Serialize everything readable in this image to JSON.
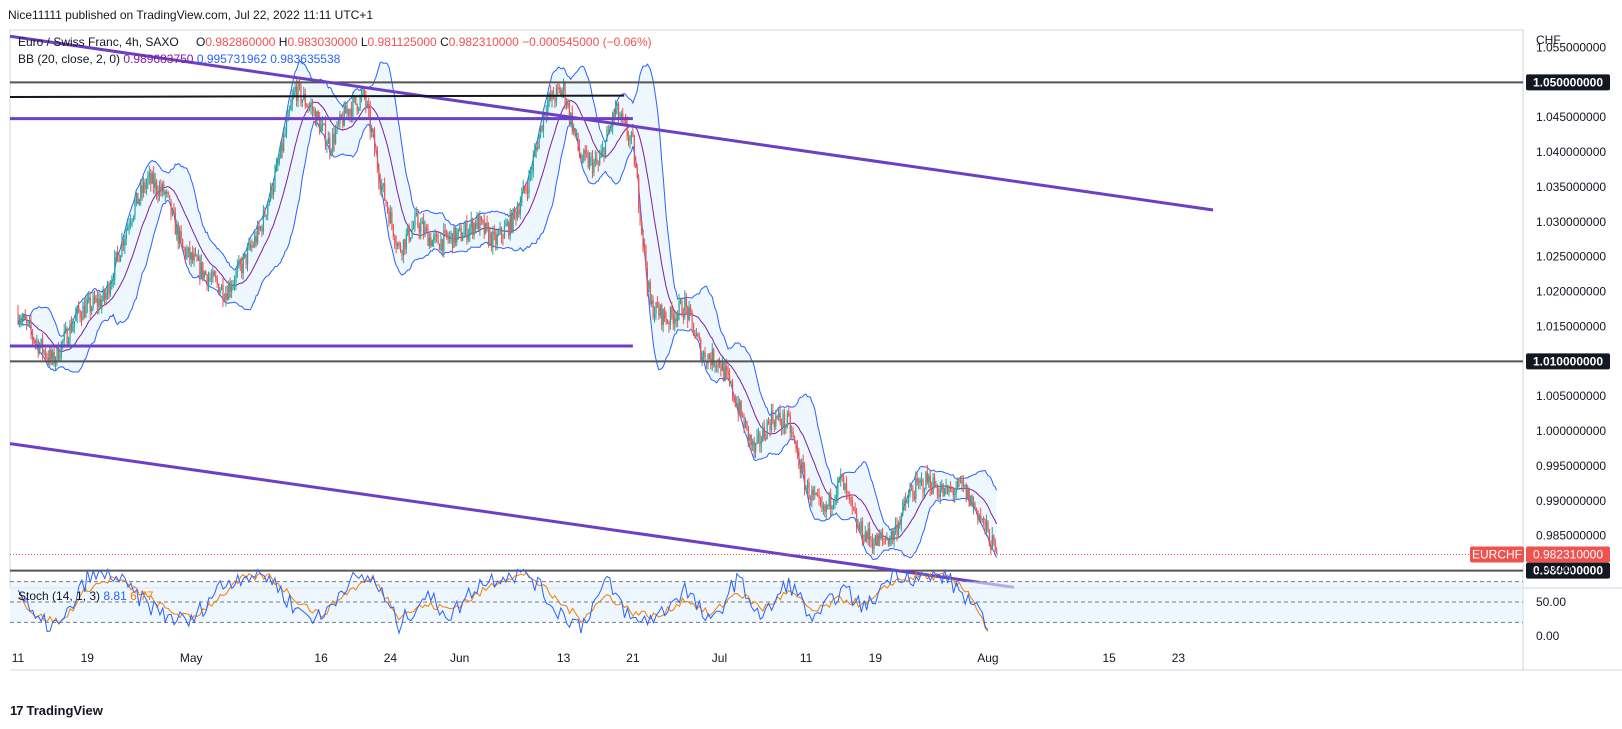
{
  "header": {
    "publisher": "Nice11111 published on TradingView.com, Jul 22, 2022 11:11 UTC+1"
  },
  "legend": {
    "symbol": "Euro / Swiss Franc, 4h, SAXO",
    "o_label": "O",
    "o": "0.982860000",
    "h_label": "H",
    "h": "0.983030000",
    "l_label": "L",
    "l": "0.981125000",
    "c_label": "C",
    "c": "0.982310000",
    "change": "−0.000545000 (−0.06%)",
    "bb_label": "BB (20, close, 2, 0)",
    "bb_mid": "0.989683750",
    "bb_upper": "0.995731962",
    "bb_lower": "0.983635538",
    "stoch_label": "Stoch (14, 1, 3)",
    "stoch_k": "8.81",
    "stoch_d": "6.77"
  },
  "footer": {
    "brand": "TradingView",
    "logo": "17"
  },
  "colors": {
    "up": "#26a69a",
    "down": "#ef5350",
    "bb_band": "#2962ff",
    "bb_fill": "#e3f2fd",
    "bb_basis": "#7b1fa2",
    "trendline": "#6c3fc5",
    "level": "#131722",
    "stoch_k": "#2962ff",
    "stoch_d": "#f57c00",
    "price_tag": "#ef5350"
  },
  "chart_data": {
    "type": "candlestick",
    "title": "Euro / Swiss Franc, 4h, SAXO",
    "currency": "CHF",
    "price_axis": {
      "ylim": [
        0.9775,
        1.0575
      ],
      "ticks": [
        1.055,
        1.045,
        1.04,
        1.035,
        1.03,
        1.025,
        1.02,
        1.015,
        1.005,
        1.0,
        0.995,
        0.99,
        0.985
      ],
      "tick_labels": [
        "1.055000000",
        "1.045000000",
        "1.040000000",
        "1.035000000",
        "1.030000000",
        "1.025000000",
        "1.020000000",
        "1.015000000",
        "1.005000000",
        "1.000000000",
        "0.995000000",
        "0.990000000",
        "0.985000000"
      ]
    },
    "x_axis": {
      "tick_labels": [
        "11",
        "19",
        "May",
        "16",
        "24",
        "Jun",
        "13",
        "21",
        "Jul",
        "11",
        "19",
        "Aug",
        "15",
        "23"
      ],
      "tick_dates": [
        "2022-04-11",
        "2022-04-19",
        "2022-05-01",
        "2022-05-16",
        "2022-05-24",
        "2022-06-01",
        "2022-06-13",
        "2022-06-21",
        "2022-07-01",
        "2022-07-11",
        "2022-07-19",
        "2022-08-01",
        "2022-08-15",
        "2022-08-23"
      ]
    },
    "horizontal_levels": [
      {
        "name": "resistance",
        "price": 1.05,
        "label": "1.050000000"
      },
      {
        "name": "support-mid",
        "price": 1.01,
        "label": "1.010000000"
      },
      {
        "name": "support-low",
        "price": 0.98,
        "label": "0.980000000"
      }
    ],
    "last_price": {
      "symbol": "EURCHF",
      "price": 0.98231,
      "label": "0.982310000"
    },
    "trend_lines": [
      {
        "name": "upper-descending-trendline",
        "from": [
          "2022-04-11",
          1.0566
        ],
        "to": [
          "2022-08-27",
          1.0317
        ]
      },
      {
        "name": "lower-descending-trendline",
        "from": [
          "2022-04-11",
          0.9982
        ],
        "to": [
          "2022-08-04",
          0.9776
        ]
      },
      {
        "name": "upper-horizontal-band",
        "from": [
          "2022-04-11",
          1.0448
        ],
        "to": [
          "2022-06-21",
          1.0448
        ]
      },
      {
        "name": "middle-horizontal-band",
        "from": [
          "2022-04-11",
          1.0122
        ],
        "to": [
          "2022-06-21",
          1.0122
        ]
      },
      {
        "name": "black-top-line",
        "from": [
          "2022-04-11",
          1.0479
        ],
        "to": [
          "2022-06-20",
          1.0481
        ]
      }
    ],
    "price_path": [
      [
        "2022-04-11",
        1.017
      ],
      [
        "2022-04-13",
        1.013
      ],
      [
        "2022-04-15",
        1.01
      ],
      [
        "2022-04-18",
        1.017
      ],
      [
        "2022-04-21",
        1.019
      ],
      [
        "2022-04-24",
        1.031
      ],
      [
        "2022-04-26",
        1.036
      ],
      [
        "2022-04-28",
        1.034
      ],
      [
        "2022-04-30",
        1.026
      ],
      [
        "2022-05-03",
        1.022
      ],
      [
        "2022-05-05",
        1.02
      ],
      [
        "2022-05-07",
        1.024
      ],
      [
        "2022-05-09",
        1.029
      ],
      [
        "2022-05-11",
        1.038
      ],
      [
        "2022-05-13",
        1.049
      ],
      [
        "2022-05-15",
        1.046
      ],
      [
        "2022-05-17",
        1.041
      ],
      [
        "2022-05-19",
        1.046
      ],
      [
        "2022-05-21",
        1.048
      ],
      [
        "2022-05-23",
        1.035
      ],
      [
        "2022-05-25",
        1.026
      ],
      [
        "2022-05-27",
        1.03
      ],
      [
        "2022-05-29",
        1.027
      ],
      [
        "2022-06-01",
        1.028
      ],
      [
        "2022-06-03",
        1.03
      ],
      [
        "2022-06-05",
        1.027
      ],
      [
        "2022-06-07",
        1.03
      ],
      [
        "2022-06-09",
        1.036
      ],
      [
        "2022-06-11",
        1.047
      ],
      [
        "2022-06-13",
        1.049
      ],
      [
        "2022-06-15",
        1.039
      ],
      [
        "2022-06-17",
        1.038
      ],
      [
        "2022-06-19",
        1.046
      ],
      [
        "2022-06-21",
        1.041
      ],
      [
        "2022-06-23",
        1.018
      ],
      [
        "2022-06-25",
        1.016
      ],
      [
        "2022-06-27",
        1.018
      ],
      [
        "2022-06-29",
        1.011
      ],
      [
        "2022-07-01",
        1.01
      ],
      [
        "2022-07-03",
        1.004
      ],
      [
        "2022-07-05",
        0.997
      ],
      [
        "2022-07-07",
        1.002
      ],
      [
        "2022-07-09",
        1.001
      ],
      [
        "2022-07-11",
        0.992
      ],
      [
        "2022-07-13",
        0.988
      ],
      [
        "2022-07-15",
        0.993
      ],
      [
        "2022-07-17",
        0.986
      ],
      [
        "2022-07-19",
        0.984
      ],
      [
        "2022-07-21",
        0.985
      ],
      [
        "2022-07-23",
        0.991
      ],
      [
        "2022-07-25",
        0.993
      ],
      [
        "2022-07-27",
        0.991
      ],
      [
        "2022-07-29",
        0.992
      ],
      [
        "2022-07-31",
        0.988
      ],
      [
        "2022-08-02",
        0.9823
      ]
    ],
    "bollinger": {
      "period": 20,
      "source": "close",
      "stddev": 2,
      "offset": 0
    },
    "stochastic": {
      "label": "Stoch (14, 1, 3)",
      "ylim": [
        0,
        100
      ],
      "tick_labels": [
        "100.00",
        "50.00",
        "0.00"
      ],
      "bands": [
        20,
        50,
        80
      ],
      "k": [
        [
          "2022-04-11",
          70
        ],
        [
          "2022-04-13",
          20
        ],
        [
          "2022-04-16",
          15
        ],
        [
          "2022-04-19",
          85
        ],
        [
          "2022-04-22",
          90
        ],
        [
          "2022-04-25",
          55
        ],
        [
          "2022-04-28",
          30
        ],
        [
          "2022-05-01",
          20
        ],
        [
          "2022-05-04",
          70
        ],
        [
          "2022-05-07",
          90
        ],
        [
          "2022-05-10",
          88
        ],
        [
          "2022-05-13",
          40
        ],
        [
          "2022-05-16",
          25
        ],
        [
          "2022-05-19",
          80
        ],
        [
          "2022-05-22",
          85
        ],
        [
          "2022-05-25",
          15
        ],
        [
          "2022-05-28",
          60
        ],
        [
          "2022-05-31",
          30
        ],
        [
          "2022-06-03",
          75
        ],
        [
          "2022-06-06",
          90
        ],
        [
          "2022-06-09",
          92
        ],
        [
          "2022-06-12",
          40
        ],
        [
          "2022-06-15",
          15
        ],
        [
          "2022-06-18",
          80
        ],
        [
          "2022-06-21",
          20
        ],
        [
          "2022-06-24",
          30
        ],
        [
          "2022-06-27",
          70
        ],
        [
          "2022-06-30",
          15
        ],
        [
          "2022-07-03",
          85
        ],
        [
          "2022-07-06",
          25
        ],
        [
          "2022-07-09",
          80
        ],
        [
          "2022-07-12",
          20
        ],
        [
          "2022-07-15",
          70
        ],
        [
          "2022-07-18",
          40
        ],
        [
          "2022-07-21",
          95
        ],
        [
          "2022-07-24",
          85
        ],
        [
          "2022-07-27",
          88
        ],
        [
          "2022-07-30",
          50
        ],
        [
          "2022-08-01",
          8.81
        ]
      ],
      "d": [
        [
          "2022-04-11",
          60
        ],
        [
          "2022-04-13",
          30
        ],
        [
          "2022-04-16",
          20
        ],
        [
          "2022-04-19",
          70
        ],
        [
          "2022-04-22",
          85
        ],
        [
          "2022-04-25",
          65
        ],
        [
          "2022-04-28",
          40
        ],
        [
          "2022-05-01",
          25
        ],
        [
          "2022-05-04",
          55
        ],
        [
          "2022-05-07",
          85
        ],
        [
          "2022-05-10",
          88
        ],
        [
          "2022-05-13",
          55
        ],
        [
          "2022-05-16",
          30
        ],
        [
          "2022-05-19",
          65
        ],
        [
          "2022-05-22",
          85
        ],
        [
          "2022-05-25",
          30
        ],
        [
          "2022-05-28",
          45
        ],
        [
          "2022-05-31",
          40
        ],
        [
          "2022-06-03",
          60
        ],
        [
          "2022-06-06",
          85
        ],
        [
          "2022-06-09",
          90
        ],
        [
          "2022-06-12",
          55
        ],
        [
          "2022-06-15",
          25
        ],
        [
          "2022-06-18",
          60
        ],
        [
          "2022-06-21",
          35
        ],
        [
          "2022-06-24",
          28
        ],
        [
          "2022-06-27",
          55
        ],
        [
          "2022-06-30",
          30
        ],
        [
          "2022-07-03",
          65
        ],
        [
          "2022-07-06",
          40
        ],
        [
          "2022-07-09",
          65
        ],
        [
          "2022-07-12",
          35
        ],
        [
          "2022-07-15",
          55
        ],
        [
          "2022-07-18",
          45
        ],
        [
          "2022-07-21",
          80
        ],
        [
          "2022-07-24",
          88
        ],
        [
          "2022-07-27",
          87
        ],
        [
          "2022-07-30",
          62
        ],
        [
          "2022-08-01",
          6.77
        ]
      ]
    }
  }
}
